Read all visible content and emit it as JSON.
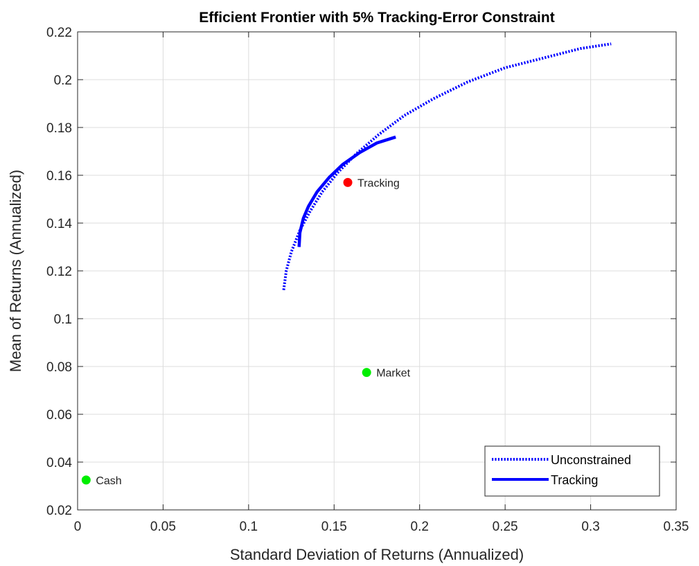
{
  "chart_data": {
    "type": "line",
    "title": "Efficient Frontier with 5% Tracking-Error Constraint",
    "xlabel": "Standard Deviation of Returns (Annualized)",
    "ylabel": "Mean of Returns (Annualized)",
    "xlim": [
      0,
      0.35
    ],
    "ylim": [
      0.02,
      0.22
    ],
    "xticks": [
      0,
      0.05,
      0.1,
      0.15,
      0.2,
      0.25,
      0.3,
      0.35
    ],
    "xtick_labels": [
      "0",
      "0.05",
      "0.1",
      "0.15",
      "0.2",
      "0.25",
      "0.3",
      "0.35"
    ],
    "yticks": [
      0.02,
      0.04,
      0.06,
      0.08,
      0.1,
      0.12,
      0.14,
      0.16,
      0.18,
      0.2,
      0.22
    ],
    "ytick_labels": [
      "0.02",
      "0.04",
      "0.06",
      "0.08",
      "0.1",
      "0.12",
      "0.14",
      "0.16",
      "0.18",
      "0.2",
      "0.22"
    ],
    "grid": true,
    "legend_position": "bottom-right",
    "series": [
      {
        "name": "Unconstrained",
        "style": "dotted",
        "color": "#0000ff",
        "x": [
          0.1205,
          0.122,
          0.125,
          0.13,
          0.136,
          0.143,
          0.152,
          0.163,
          0.176,
          0.191,
          0.208,
          0.228,
          0.25,
          0.272,
          0.294,
          0.312
        ],
        "y": [
          0.112,
          0.12,
          0.128,
          0.137,
          0.145,
          0.153,
          0.161,
          0.169,
          0.177,
          0.185,
          0.192,
          0.199,
          0.205,
          0.209,
          0.213,
          0.215
        ]
      },
      {
        "name": "Tracking",
        "style": "solid",
        "color": "#0000ff",
        "x": [
          0.1295,
          0.13,
          0.132,
          0.135,
          0.14,
          0.147,
          0.155,
          0.165,
          0.175,
          0.186
        ],
        "y": [
          0.13,
          0.136,
          0.142,
          0.147,
          0.153,
          0.159,
          0.1645,
          0.1695,
          0.1735,
          0.176
        ]
      }
    ],
    "points": [
      {
        "label": "Tracking",
        "x": 0.158,
        "y": 0.157,
        "color": "#ff0000"
      },
      {
        "label": "Market",
        "x": 0.169,
        "y": 0.0775,
        "color": "#00ee00"
      },
      {
        "label": "Cash",
        "x": 0.005,
        "y": 0.0325,
        "color": "#00ee00"
      }
    ]
  }
}
